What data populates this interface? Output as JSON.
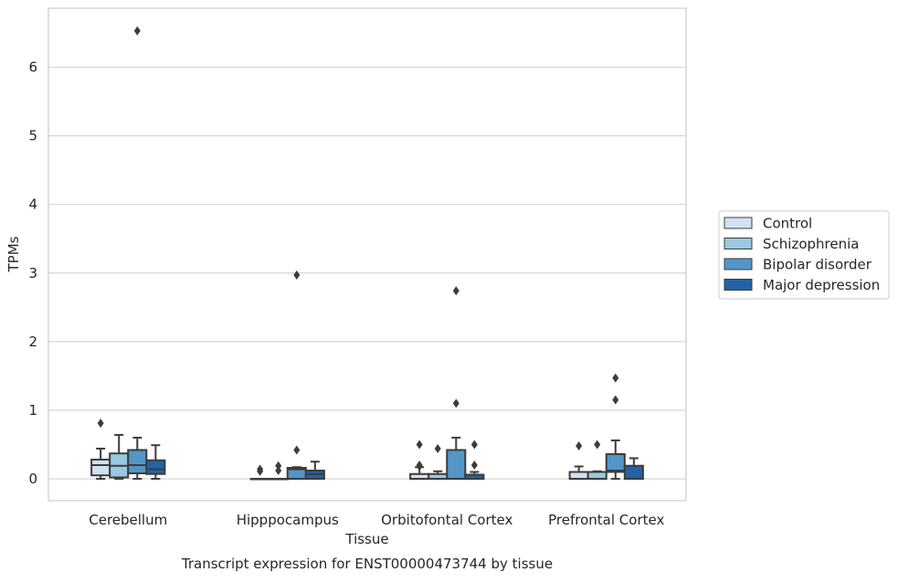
{
  "chart_data": {
    "type": "boxplot",
    "title": "Transcript expression for ENST00000473744 by tissue",
    "xlabel": "Tissue",
    "ylabel": "TPMs",
    "ylim": [
      -0.32,
      6.86
    ],
    "yticks": [
      0,
      1,
      2,
      3,
      4,
      5,
      6
    ],
    "grid": "horizontal",
    "legend_position": "right",
    "categories": [
      "Cerebellum",
      "Hipppocampus",
      "Orbitofontal Cortex",
      "Prefrontal Cortex"
    ],
    "series": [
      {
        "name": "Control",
        "color": "#d0e1f2",
        "boxes": [
          {
            "whislo": 0.0,
            "q1": 0.05,
            "med": 0.2,
            "q3": 0.28,
            "whishi": 0.44,
            "fliers": [
              0.81
            ]
          },
          {
            "whislo": 0.0,
            "q1": 0.0,
            "med": 0.0,
            "q3": 0.0,
            "whishi": 0.0,
            "fliers": [
              0.11,
              0.14
            ]
          },
          {
            "whislo": 0.0,
            "q1": 0.0,
            "med": 0.0,
            "q3": 0.07,
            "whishi": 0.17,
            "fliers": [
              0.18,
              0.2,
              0.5
            ]
          },
          {
            "whislo": 0.0,
            "q1": 0.0,
            "med": 0.0,
            "q3": 0.1,
            "whishi": 0.18,
            "fliers": [
              0.48
            ]
          }
        ]
      },
      {
        "name": "Schizophrenia",
        "color": "#9ac8e0",
        "boxes": [
          {
            "whislo": 0.0,
            "q1": 0.02,
            "med": 0.19,
            "q3": 0.37,
            "whishi": 0.64,
            "fliers": []
          },
          {
            "whislo": 0.0,
            "q1": 0.0,
            "med": 0.0,
            "q3": 0.0,
            "whishi": 0.0,
            "fliers": [
              0.12,
              0.19
            ]
          },
          {
            "whislo": 0.0,
            "q1": 0.0,
            "med": 0.0,
            "q3": 0.07,
            "whishi": 0.11,
            "fliers": [
              0.44
            ]
          },
          {
            "whislo": 0.0,
            "q1": 0.0,
            "med": 0.0,
            "q3": 0.1,
            "whishi": 0.11,
            "fliers": [
              0.5
            ]
          }
        ]
      },
      {
        "name": "Bipolar disorder",
        "color": "#5296c8",
        "boxes": [
          {
            "whislo": 0.0,
            "q1": 0.08,
            "med": 0.2,
            "q3": 0.42,
            "whishi": 0.6,
            "fliers": [
              6.53
            ]
          },
          {
            "whislo": 0.0,
            "q1": 0.0,
            "med": 0.14,
            "q3": 0.16,
            "whishi": 0.17,
            "fliers": [
              0.42,
              2.97
            ]
          },
          {
            "whislo": 0.0,
            "q1": 0.0,
            "med": 0.0,
            "q3": 0.42,
            "whishi": 0.6,
            "fliers": [
              1.1,
              2.74
            ]
          },
          {
            "whislo": 0.0,
            "q1": 0.1,
            "med": 0.12,
            "q3": 0.36,
            "whishi": 0.56,
            "fliers": [
              1.15,
              1.47
            ]
          }
        ]
      },
      {
        "name": "Major depression",
        "color": "#2163a6",
        "boxes": [
          {
            "whislo": 0.0,
            "q1": 0.07,
            "med": 0.14,
            "q3": 0.27,
            "whishi": 0.49,
            "fliers": []
          },
          {
            "whislo": 0.0,
            "q1": 0.0,
            "med": 0.07,
            "q3": 0.12,
            "whishi": 0.25,
            "fliers": []
          },
          {
            "whislo": 0.0,
            "q1": 0.0,
            "med": 0.0,
            "q3": 0.06,
            "whishi": 0.1,
            "fliers": [
              0.2,
              0.5
            ]
          },
          {
            "whislo": 0.0,
            "q1": 0.0,
            "med": 0.0,
            "q3": 0.19,
            "whishi": 0.3,
            "fliers": []
          }
        ]
      }
    ]
  }
}
